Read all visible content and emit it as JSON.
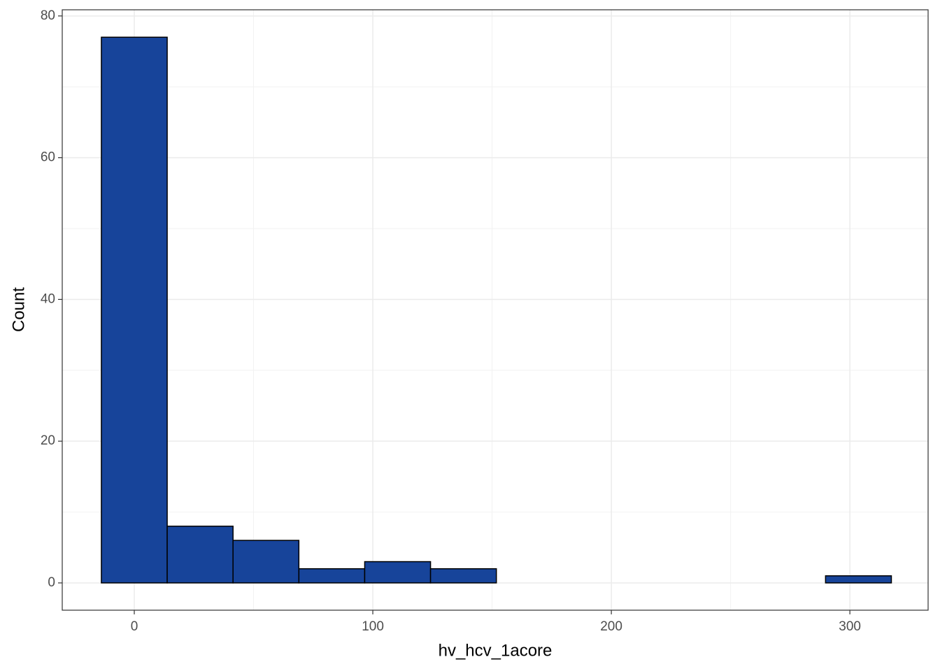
{
  "chart_data": {
    "type": "histogram",
    "x_label": "hv_hcv_1acore",
    "y_label": "Count",
    "bins": [
      -13.8,
      13.8,
      41.4,
      69,
      96.6,
      124.2,
      151.8,
      179.4,
      207,
      234.6,
      262.2,
      289.8,
      317.4
    ],
    "values": [
      77,
      8,
      6,
      2,
      3,
      2,
      0,
      0,
      0,
      0,
      0,
      1
    ],
    "color": "#17449a",
    "edge_color": "#000000",
    "xlim": [
      -30.2,
      332.8
    ],
    "ylim": [
      -3.85,
      80.87
    ],
    "xticks": [
      0,
      100,
      200,
      300
    ],
    "yticks": [
      0,
      20,
      40,
      60,
      80
    ],
    "x_minor_ticks": [
      50,
      150,
      250
    ],
    "y_minor_ticks": [
      10,
      30,
      50,
      70
    ],
    "grid": true
  }
}
